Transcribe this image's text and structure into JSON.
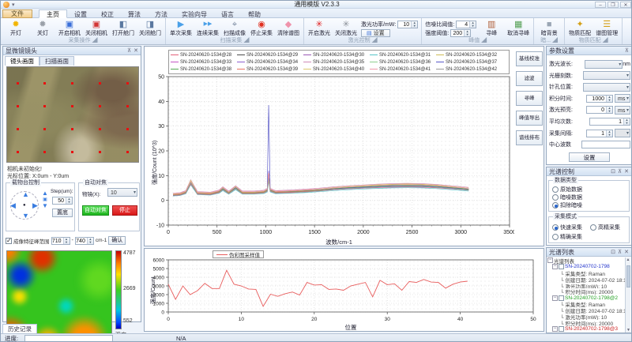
{
  "window": {
    "title": "通用模版 V2.3.3",
    "min": "–",
    "max": "❐",
    "close": "✕"
  },
  "menu": {
    "file": "文件",
    "tabs": [
      "主页",
      "设置",
      "校正",
      "算法",
      "方法",
      "实验向导",
      "语言",
      "帮助"
    ],
    "active": "主页"
  },
  "ribbon": {
    "groups": [
      {
        "label": "采集操作",
        "items": [
          {
            "t": "btn",
            "label": "开灯",
            "icon": "light-on-icon"
          },
          {
            "t": "btn",
            "label": "关灯",
            "icon": "light-off-icon"
          },
          {
            "t": "btn",
            "label": "开启相机",
            "icon": "camera-on-icon"
          },
          {
            "t": "btn",
            "label": "关闭相机",
            "icon": "camera-off-icon"
          },
          {
            "t": "btn",
            "label": "打开舱门",
            "icon": "door-open-icon"
          },
          {
            "t": "btn",
            "label": "关闭舱门",
            "icon": "door-close-icon"
          }
        ]
      },
      {
        "label": "扫描采集",
        "items": [
          {
            "t": "btn",
            "label": "单次采集",
            "icon": "single-acquire-icon"
          },
          {
            "t": "btn",
            "label": "连续采集",
            "icon": "continuous-acquire-icon"
          },
          {
            "t": "btn",
            "label": "扫描成像",
            "icon": "scan-imaging-icon"
          },
          {
            "t": "btn",
            "label": "停止采集",
            "icon": "stop-icon"
          },
          {
            "t": "btn",
            "label": "清除谱图",
            "icon": "eraser-icon"
          }
        ]
      },
      {
        "label": "激光控制",
        "items": [
          {
            "t": "btn",
            "label": "开启激光",
            "icon": "laser-on-icon"
          },
          {
            "t": "btn",
            "label": "关闭激光",
            "icon": "laser-off-icon"
          },
          {
            "t": "col",
            "rows": [
              {
                "t": "field",
                "label": "激光功率/mW:",
                "value": "10"
              },
              {
                "t": "smallbtn",
                "label": "设置",
                "icon": "save-icon"
              }
            ]
          }
        ]
      },
      {
        "label": "峰值",
        "items": [
          {
            "t": "col",
            "rows": [
              {
                "t": "field",
                "label": "信噪比阈值:",
                "value": "4"
              },
              {
                "t": "field",
                "label": "强度阈值:",
                "value": "200"
              }
            ]
          },
          {
            "t": "btn",
            "label": "寻峰",
            "icon": "find-peak-icon"
          },
          {
            "t": "btn",
            "label": "取消寻峰",
            "icon": "cancel-peak-icon"
          }
        ]
      },
      {
        "label": "暗...",
        "items": [
          {
            "t": "btn",
            "label": "暗背景",
            "icon": "dark-background-icon"
          }
        ]
      },
      {
        "label": "物质匹配",
        "items": [
          {
            "t": "btn",
            "label": "物质匹配",
            "icon": "substance-match-icon"
          },
          {
            "t": "btn",
            "label": "谱图管理",
            "icon": "spectra-manage-icon"
          }
        ]
      }
    ]
  },
  "camera_panel": {
    "title": "显微镜镜头",
    "tabs": [
      "镜头画面",
      "扫描画面"
    ],
    "active": "镜头画面",
    "status": "相机未初始化!",
    "cursor": "光标位置: X:0um - Y:0um"
  },
  "stage": {
    "title": "载物台控制",
    "step_label": "Step(um):",
    "step_value": "50",
    "bottom_btn": "置底"
  },
  "focus": {
    "title": "自动对焦",
    "objective_label": "物镜(X):",
    "objective_value": "10",
    "auto_btn": "自动对焦",
    "stop_btn": "停止"
  },
  "feature_range": {
    "label": "成像特征峰范围",
    "from": "710",
    "dash": "-",
    "to": "740",
    "unit": "cm-1",
    "confirm": "确认"
  },
  "colorbar": {
    "max": "4787",
    "mid": "2669",
    "min": "552",
    "label": "强度"
  },
  "history": {
    "tab": "历史记录"
  },
  "statusbar": {
    "label": "进度:",
    "na": "N/A"
  },
  "chart_tools": [
    "基线校准",
    "滤波",
    "寻峰",
    "峰值导出",
    "谱线排布"
  ],
  "params": {
    "title": "参数设置",
    "rows": [
      {
        "label": "激光波长:",
        "type": "select",
        "value": "",
        "suffix": "nm"
      },
      {
        "label": "光栅刻数:",
        "type": "select",
        "value": ""
      },
      {
        "label": "针孔位置:",
        "type": "select",
        "value": ""
      },
      {
        "label": "积分时间:",
        "type": "spin",
        "value": "1000",
        "unit": "ms"
      },
      {
        "label": "激光预亮:",
        "type": "spin",
        "value": "0",
        "unit": "ms"
      },
      {
        "label": "平均次数:",
        "type": "spin",
        "value": "1"
      },
      {
        "label": "采集间隔:",
        "type": "spin2",
        "value": "1",
        "unit": ""
      },
      {
        "label": "中心波数",
        "type": "input",
        "value": ""
      }
    ],
    "apply": "设置"
  },
  "spectrum_control": {
    "title": "光谱控制",
    "data_type": {
      "title": "数据类型",
      "options": [
        "原始数据",
        "暗噪数据",
        "扣除暗噪"
      ],
      "selected": 2
    },
    "acq_mode": {
      "title": "采集模式",
      "options": [
        "快速采集",
        "高精采集",
        "精确采集"
      ],
      "selected": 0
    }
  },
  "spectrum_list": {
    "title": "光谱列表",
    "root": "光谱列表",
    "items": [
      {
        "name": "SN-20240702-1798",
        "color": "#2233cc",
        "fields": [
          "采集类型: Raman",
          "创建日期: 2024-07-02 18:10...",
          "激光功率(mW): 10",
          "积分时间(ms): 20000"
        ]
      },
      {
        "name": "SN-20240702-1798@2",
        "color": "#22a022",
        "fields": [
          "采集类型: Raman",
          "创建日期: 2024-07-02 18:10...",
          "激光功率(mW): 10",
          "积分时间(ms): 20000"
        ]
      },
      {
        "name": "SN-20240702-1798@3",
        "color": "#cc2222",
        "fields": [
          "采集类型: Raman"
        ]
      }
    ]
  },
  "chart_data": [
    {
      "type": "line",
      "title": "",
      "xlabel": "波数/cm-1",
      "ylabel": "强度/Count (10^3)",
      "xlim": [
        0,
        3500
      ],
      "ylim": [
        -10,
        50
      ],
      "xtick_step": 500,
      "ytick_step": 10,
      "grid": true,
      "legend_position": "top",
      "profile": [
        [
          50,
          2.2
        ],
        [
          120,
          2.4
        ],
        [
          180,
          3.2
        ],
        [
          230,
          7.2
        ],
        [
          300,
          2.8
        ],
        [
          430,
          2.6
        ],
        [
          520,
          3.4
        ],
        [
          560,
          4.6
        ],
        [
          620,
          3.0
        ],
        [
          690,
          5.0
        ],
        [
          760,
          3.0
        ],
        [
          880,
          3.0
        ],
        [
          980,
          3.3
        ],
        [
          1015,
          4.0
        ],
        [
          1030,
          -1
        ],
        [
          1045,
          4.0
        ],
        [
          1100,
          3.2
        ],
        [
          1250,
          3.4
        ],
        [
          1400,
          3.7
        ],
        [
          1550,
          4.1
        ],
        [
          1700,
          4.6
        ],
        [
          1850,
          5.0
        ],
        [
          2000,
          5.3
        ],
        [
          2150,
          5.6
        ],
        [
          2300,
          5.8
        ],
        [
          2450,
          5.9
        ],
        [
          2600,
          5.8
        ],
        [
          2750,
          5.5
        ],
        [
          2900,
          5.0
        ],
        [
          3000,
          4.7
        ],
        [
          3080,
          4.4
        ]
      ],
      "series": [
        {
          "name": "SN-20240620-1534@28",
          "color": "#e4607a",
          "scale": 1.0,
          "offset": 0.2,
          "peak": 10
        },
        {
          "name": "SN-20240620-1534@29",
          "color": "#4d4d4d",
          "scale": 0.95,
          "offset": 0.0,
          "peak": 9
        },
        {
          "name": "SN-20240620-1534@30",
          "color": "#9b59b6",
          "scale": 1.05,
          "offset": 0.3,
          "peak": 11
        },
        {
          "name": "SN-20240620-1534@31",
          "color": "#58c4c8",
          "scale": 0.9,
          "offset": -0.2,
          "peak": 8
        },
        {
          "name": "SN-20240620-1534@32",
          "color": "#cdbb56",
          "scale": 1.1,
          "offset": 0.1,
          "peak": 10
        },
        {
          "name": "SN-20240620-1534@33",
          "color": "#c455c4",
          "scale": 0.85,
          "offset": 0.4,
          "peak": 9
        },
        {
          "name": "SN-20240620-1534@34",
          "color": "#8e5fd0",
          "scale": 1.0,
          "offset": -0.3,
          "peak": 12
        },
        {
          "name": "SN-20240620-1534@35",
          "color": "#d08ab8",
          "scale": 1.08,
          "offset": 0.5,
          "peak": 8
        },
        {
          "name": "SN-20240620-1534@36",
          "color": "#8fcf8f",
          "scale": 0.92,
          "offset": 0.2,
          "peak": 10
        },
        {
          "name": "SN-20240620-1534@37",
          "color": "#5858c8",
          "scale": 1.0,
          "offset": 0.0,
          "peak": 38.5
        },
        {
          "name": "SN-20240620-1534@38",
          "color": "#55a855",
          "scale": 1.05,
          "offset": -0.1,
          "peak": 9
        },
        {
          "name": "SN-20240620-1534@39",
          "color": "#e87464",
          "scale": 0.88,
          "offset": 0.3,
          "peak": 11
        },
        {
          "name": "SN-20240620-1534@40",
          "color": "#dcc96e",
          "scale": 1.12,
          "offset": 0.0,
          "peak": 8
        },
        {
          "name": "SN-20240620-1534@41",
          "color": "#ee9aaa",
          "scale": 0.97,
          "offset": 0.6,
          "peak": 10
        },
        {
          "name": "SN-20240620-1534@42",
          "color": "#9a9a9a",
          "scale": 1.02,
          "offset": -0.4,
          "peak": 9
        }
      ]
    },
    {
      "type": "line",
      "legend": "伪彩图采样值",
      "xlabel": "位置",
      "ylabel": "强度/Count",
      "xlim": [
        0,
        50
      ],
      "ylim": [
        0,
        6000
      ],
      "xtick_step": 10,
      "ytick_step": 1000,
      "grid": true,
      "color": "#e85c5c",
      "values": [
        3200,
        1450,
        3000,
        2000,
        2450,
        3300,
        2700,
        2700,
        4800,
        3200,
        3000,
        2650,
        2600,
        650,
        2050,
        1800,
        2100,
        2300,
        1950,
        3400,
        3100,
        3150,
        2600,
        2650,
        2500,
        3000,
        3200,
        3400,
        1750,
        3650,
        3150,
        3250,
        2500,
        3500,
        3400,
        3750,
        3450,
        3400,
        2750,
        3200,
        3450,
        3550
      ]
    }
  ]
}
